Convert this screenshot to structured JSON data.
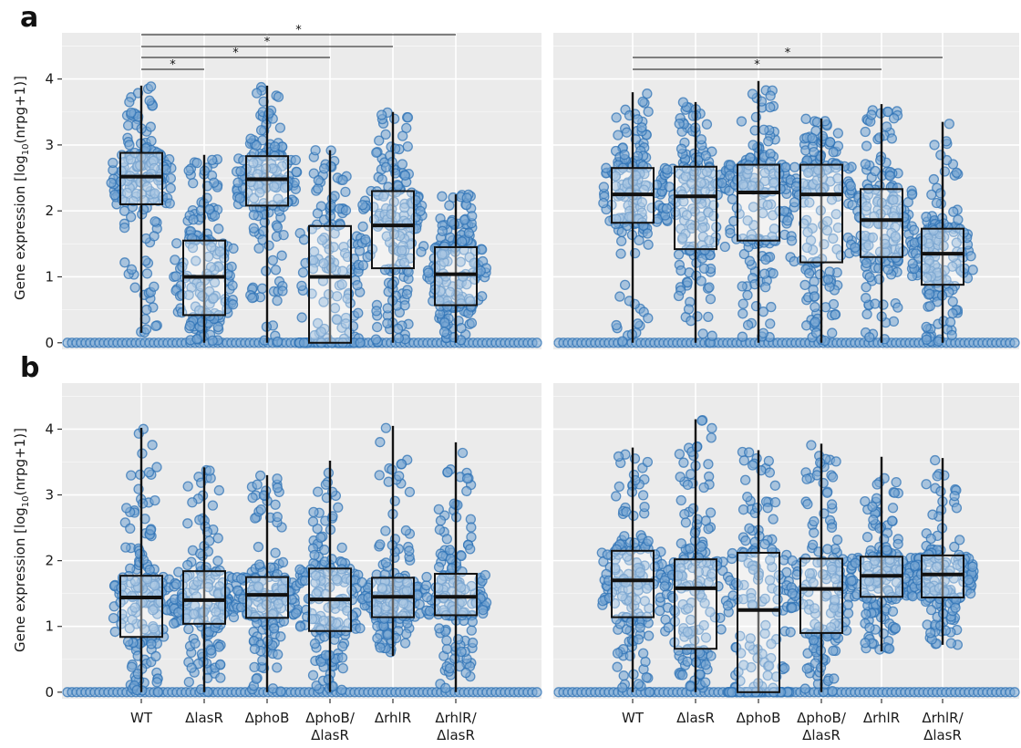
{
  "colors": {
    "point_fill": "#7ba9d3",
    "point_edge": "#2f73b5",
    "panel_background": "#ebebeb",
    "grid": "#ffffff",
    "box_edge": "#111111"
  },
  "figure": {
    "row_letters": [
      "a",
      "b"
    ],
    "y_axis_label": "Gene expression [log10(nrpg+1)]",
    "y_label_prefix": "Gene expression [log",
    "y_label_sub": "10",
    "y_label_suffix": "(nrpg+1)]",
    "significance_symbol": "*"
  },
  "chart_data": [
    {
      "type": "box",
      "row": "a",
      "column": 1,
      "categories": [
        "WT",
        "ΔlasR",
        "ΔphoB",
        "ΔphoB/\nΔlasR",
        "ΔrhlR",
        "ΔrhlR/\nΔlasR"
      ],
      "ylabel": "Gene expression [log10(nrpg+1)]",
      "ylim": [
        -0.1,
        4.7
      ],
      "yticks": [
        0,
        1,
        2,
        3,
        4
      ],
      "grid": true,
      "boxes": [
        {
          "min": 0.15,
          "q1": 2.1,
          "median": 2.52,
          "q3": 2.88,
          "max": 3.9
        },
        {
          "min": 0.0,
          "q1": 0.42,
          "median": 1.0,
          "q3": 1.55,
          "max": 2.85
        },
        {
          "min": 0.0,
          "q1": 2.08,
          "median": 2.48,
          "q3": 2.83,
          "max": 3.9
        },
        {
          "min": 0.0,
          "q1": 0.0,
          "median": 1.0,
          "q3": 1.77,
          "max": 2.92
        },
        {
          "min": 0.0,
          "q1": 1.13,
          "median": 1.78,
          "q3": 2.3,
          "max": 3.5
        },
        {
          "min": 0.0,
          "q1": 0.57,
          "median": 1.04,
          "q3": 1.45,
          "max": 2.25
        }
      ],
      "zero_count_points": true,
      "significance": [
        {
          "from": "WT",
          "to": "ΔlasR",
          "label": "*"
        },
        {
          "from": "WT",
          "to": "ΔphoB/\nΔlasR",
          "label": "*"
        },
        {
          "from": "WT",
          "to": "ΔrhlR",
          "label": "*"
        },
        {
          "from": "WT",
          "to": "ΔrhlR/\nΔlasR",
          "label": "*"
        }
      ]
    },
    {
      "type": "box",
      "row": "a",
      "column": 2,
      "categories": [
        "WT",
        "ΔlasR",
        "ΔphoB",
        "ΔphoB/\nΔlasR",
        "ΔrhlR",
        "ΔrhlR/\nΔlasR"
      ],
      "ylim": [
        -0.1,
        4.7
      ],
      "yticks": [
        0,
        1,
        2,
        3,
        4
      ],
      "grid": true,
      "boxes": [
        {
          "min": 0.0,
          "q1": 1.82,
          "median": 2.25,
          "q3": 2.65,
          "max": 3.8
        },
        {
          "min": 0.0,
          "q1": 1.42,
          "median": 2.22,
          "q3": 2.67,
          "max": 3.65
        },
        {
          "min": 0.0,
          "q1": 1.55,
          "median": 2.28,
          "q3": 2.7,
          "max": 3.97
        },
        {
          "min": 0.0,
          "q1": 1.22,
          "median": 2.25,
          "q3": 2.7,
          "max": 3.4
        },
        {
          "min": 0.0,
          "q1": 1.3,
          "median": 1.86,
          "q3": 2.33,
          "max": 3.62
        },
        {
          "min": 0.0,
          "q1": 0.88,
          "median": 1.35,
          "q3": 1.73,
          "max": 3.35
        }
      ],
      "zero_count_points": true,
      "significance": [
        {
          "from": "WT",
          "to": "ΔrhlR",
          "label": "*"
        },
        {
          "from": "WT",
          "to": "ΔrhlR/\nΔlasR",
          "label": "*"
        }
      ]
    },
    {
      "type": "box",
      "row": "b",
      "column": 1,
      "categories": [
        "WT",
        "ΔlasR",
        "ΔphoB",
        "ΔphoB/\nΔlasR",
        "ΔrhlR",
        "ΔrhlR/\nΔlasR"
      ],
      "ylabel": "Gene expression [log10(nrpg+1)]",
      "ylim": [
        -0.1,
        4.7
      ],
      "yticks": [
        0,
        1,
        2,
        3,
        4
      ],
      "grid": true,
      "boxes": [
        {
          "min": 0.0,
          "q1": 0.84,
          "median": 1.44,
          "q3": 1.77,
          "max": 4.02
        },
        {
          "min": 0.0,
          "q1": 1.04,
          "median": 1.4,
          "q3": 1.84,
          "max": 3.42
        },
        {
          "min": 0.0,
          "q1": 1.13,
          "median": 1.48,
          "q3": 1.75,
          "max": 3.3
        },
        {
          "min": 0.0,
          "q1": 0.93,
          "median": 1.41,
          "q3": 1.88,
          "max": 3.52
        },
        {
          "min": 0.55,
          "q1": 1.14,
          "median": 1.45,
          "q3": 1.74,
          "max": 4.05
        },
        {
          "min": 0.0,
          "q1": 1.17,
          "median": 1.45,
          "q3": 1.8,
          "max": 3.8
        }
      ],
      "zero_count_points": true,
      "significance": []
    },
    {
      "type": "box",
      "row": "b",
      "column": 2,
      "categories": [
        "WT",
        "ΔlasR",
        "ΔphoB",
        "ΔphoB/\nΔlasR",
        "ΔrhlR",
        "ΔrhlR/\nΔlasR"
      ],
      "ylim": [
        -0.1,
        4.7
      ],
      "yticks": [
        0,
        1,
        2,
        3,
        4
      ],
      "grid": true,
      "boxes": [
        {
          "min": 0.0,
          "q1": 1.14,
          "median": 1.7,
          "q3": 2.15,
          "max": 3.72
        },
        {
          "min": 0.0,
          "q1": 0.66,
          "median": 1.58,
          "q3": 2.02,
          "max": 4.15
        },
        {
          "min": 0.0,
          "q1": 0.0,
          "median": 1.25,
          "q3": 2.12,
          "max": 3.68
        },
        {
          "min": 0.0,
          "q1": 0.9,
          "median": 1.57,
          "q3": 2.03,
          "max": 3.78
        },
        {
          "min": 0.62,
          "q1": 1.45,
          "median": 1.77,
          "q3": 2.06,
          "max": 3.58
        },
        {
          "min": 0.72,
          "q1": 1.44,
          "median": 1.79,
          "q3": 2.08,
          "max": 3.56
        }
      ],
      "zero_count_points": true,
      "significance": []
    }
  ]
}
